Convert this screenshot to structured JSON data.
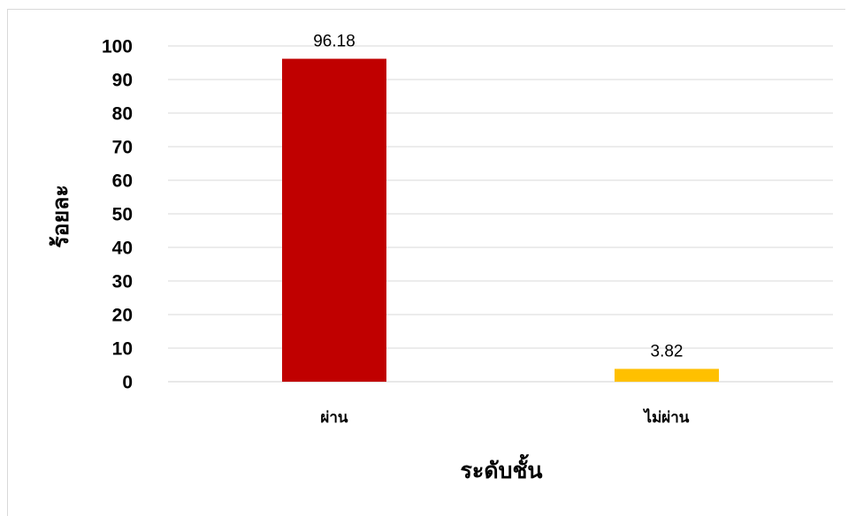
{
  "chart_data": {
    "type": "bar",
    "categories": [
      "ผ่าน",
      "ไม่ผ่าน"
    ],
    "values": [
      96.18,
      3.82
    ],
    "data_labels": [
      "96.18",
      "3.82"
    ],
    "bar_colors": [
      "#c00000",
      "#ffc000"
    ],
    "xlabel": "ระดับชั้น",
    "ylabel": "ร้อยละ",
    "ylim": [
      0,
      100
    ],
    "yticks": [
      0,
      10,
      20,
      30,
      40,
      50,
      60,
      70,
      80,
      90,
      100
    ],
    "grid": true,
    "legend": "none",
    "colors": {
      "gridline": "#d9d9d9",
      "text": "#000000"
    }
  }
}
